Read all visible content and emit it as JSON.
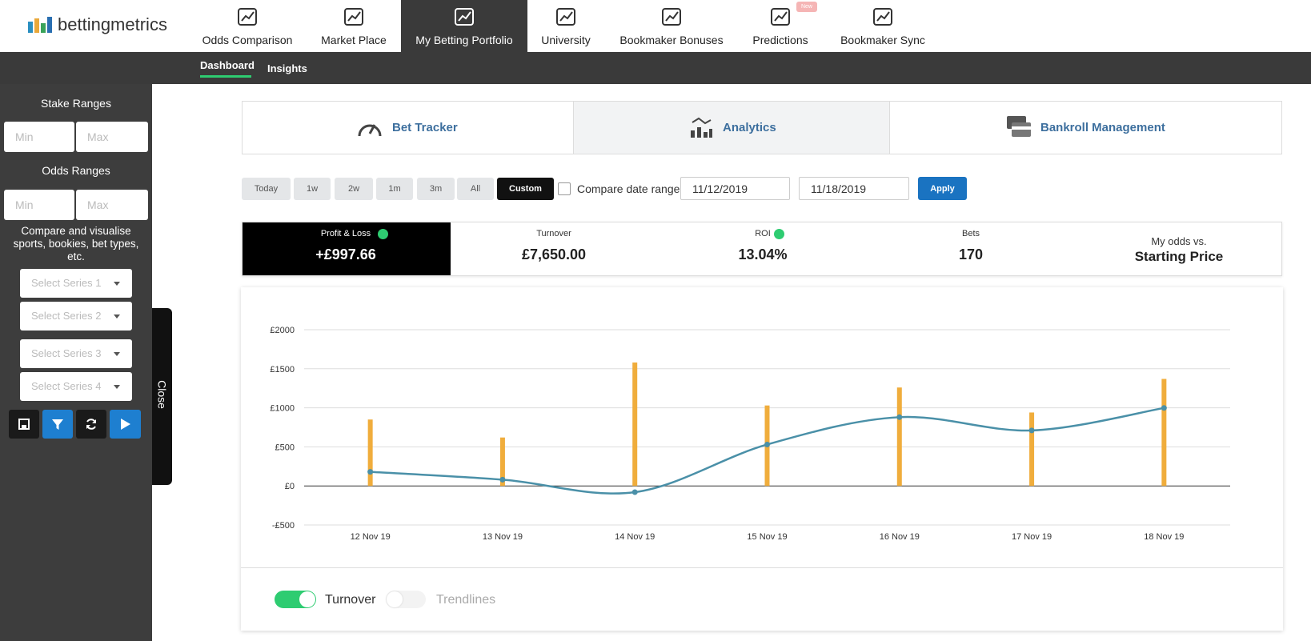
{
  "nav": {
    "brand": "bettingmetrics",
    "items": [
      "Odds Comparison",
      "Market Place",
      "My Betting Portfolio",
      "University",
      "Bookmaker Bonuses",
      "Predictions",
      "Bookmaker Sync"
    ],
    "badge": "New"
  },
  "subnav": [
    "Dashboard",
    "Insights"
  ],
  "sidebar": {
    "stake_title": "Stake Ranges",
    "odds_title": "Odds Ranges",
    "min": "Min",
    "max": "Max",
    "compare_text": "Compare and visualise sports, bookies, bet types, etc.",
    "series_selects": [
      "Select Series 1",
      "Select Series 2",
      "Select Series 3",
      "Select Series 4"
    ],
    "close": "Close"
  },
  "tabs": [
    "Bet Tracker",
    "Analytics",
    "Bankroll Management"
  ],
  "ranges": [
    "Today",
    "1w",
    "2w",
    "1m",
    "3m",
    "All",
    "Custom"
  ],
  "compare_label": "Compare date range",
  "date_from": "11/12/2019",
  "date_to": "11/18/2019",
  "apply": "Apply",
  "stats": [
    {
      "label": "Profit & Loss",
      "value": "+£997.66"
    },
    {
      "label": "Turnover",
      "value": "£7,650.00"
    },
    {
      "label": "ROI",
      "value": "13.04%"
    },
    {
      "label": "Bets",
      "value": "170"
    },
    {
      "label": "My odds vs.",
      "value": "Starting Price"
    }
  ],
  "chart_data": {
    "type": "bar",
    "categories": [
      "12 Nov 19",
      "13 Nov 19",
      "14 Nov 19",
      "15 Nov 19",
      "16 Nov 19",
      "17 Nov 19",
      "18 Nov 19"
    ],
    "series": [
      {
        "name": "Turnover",
        "type": "bar",
        "color": "#f0ad3c",
        "values": [
          850,
          620,
          1580,
          1030,
          1260,
          940,
          1370
        ]
      },
      {
        "type": "line",
        "color": "#4a90a8",
        "values": [
          180,
          80,
          -80,
          530,
          880,
          710,
          998
        ]
      }
    ],
    "ylim": [
      -500,
      2000
    ],
    "yticks": [
      {
        "value": -500,
        "label": "-£500"
      },
      {
        "value": 0,
        "label": "£0"
      },
      {
        "value": 500,
        "label": "£500"
      },
      {
        "value": 1000,
        "label": "£1000"
      },
      {
        "value": 1500,
        "label": "£1500"
      },
      {
        "value": 2000,
        "label": "£2000"
      }
    ],
    "grid": true
  },
  "trendlines": {
    "label": "Trendlines",
    "on": false
  }
}
